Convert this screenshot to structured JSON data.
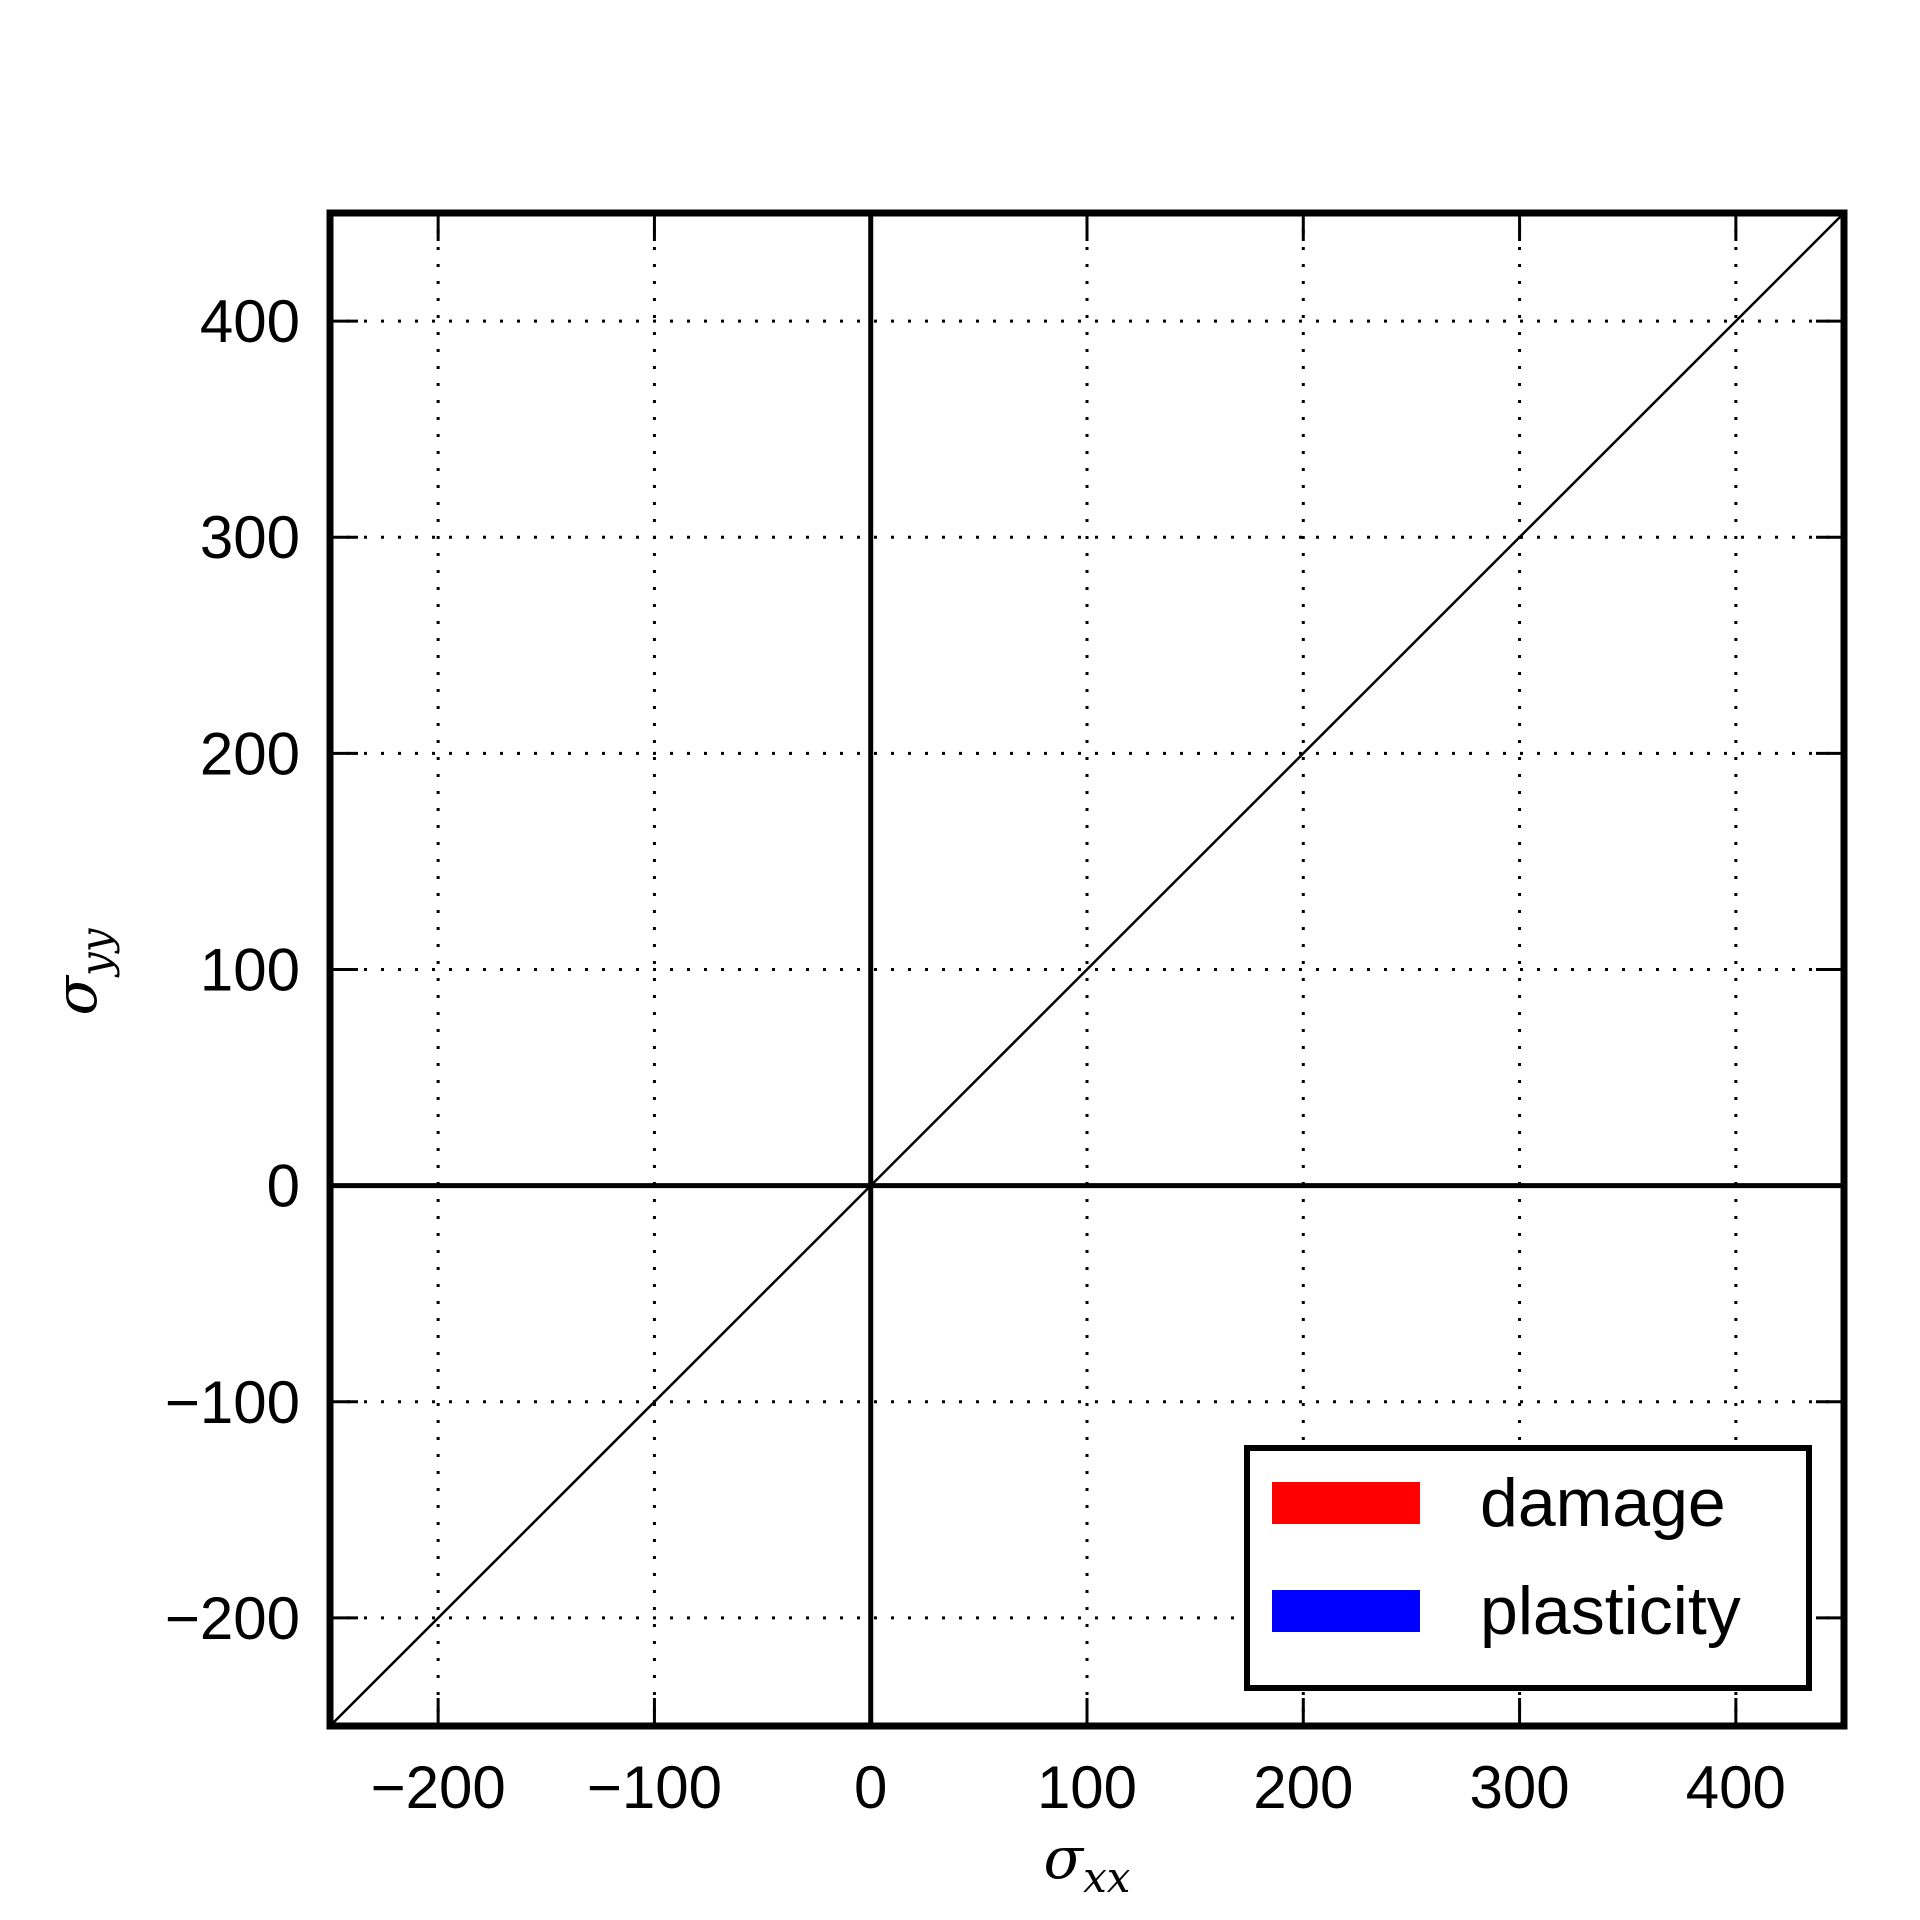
{
  "chart_data": {
    "type": "line",
    "xlabel": {
      "symbol": "σ",
      "subscript": "xx"
    },
    "ylabel": {
      "symbol": "σ",
      "subscript": "yy"
    },
    "xlim": [
      -250,
      450
    ],
    "ylim": [
      -250,
      450
    ],
    "xticks": [
      -200,
      -100,
      0,
      100,
      200,
      300,
      400
    ],
    "yticks": [
      -200,
      -100,
      0,
      100,
      200,
      300,
      400
    ],
    "xtick_labels": [
      "−200",
      "−100",
      "0",
      "100",
      "200",
      "300",
      "400"
    ],
    "ytick_labels": [
      "−200",
      "−100",
      "0",
      "100",
      "200",
      "300",
      "400"
    ],
    "grid": true,
    "reference_lines": {
      "x": 0,
      "y": 0
    },
    "series": [
      {
        "x": [
          -250,
          450
        ],
        "y": [
          -250,
          450
        ],
        "color": "#000000"
      }
    ],
    "legend": {
      "position": "lower-right",
      "entries": [
        {
          "label": "damage",
          "color": "#ff0000"
        },
        {
          "label": "plasticity",
          "color": "#0000ff"
        }
      ]
    }
  }
}
